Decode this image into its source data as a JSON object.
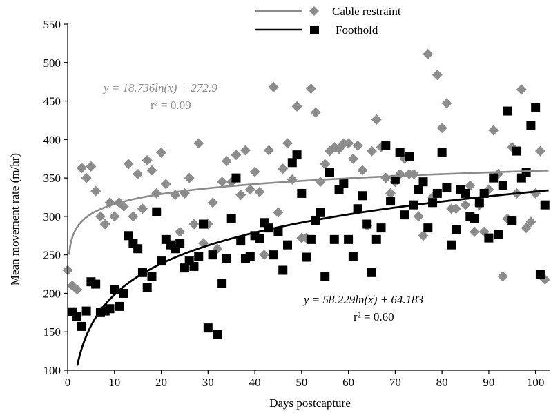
{
  "chart_data": {
    "type": "scatter",
    "title": "",
    "xlabel": "Days postcapture",
    "ylabel": "Mean movement rate (m/hr)",
    "xlim": [
      0,
      103
    ],
    "ylim": [
      100,
      550
    ],
    "x_ticks": [
      0,
      10,
      20,
      30,
      40,
      50,
      60,
      70,
      80,
      90,
      100
    ],
    "y_ticks": [
      100,
      150,
      200,
      250,
      300,
      350,
      400,
      450,
      500,
      550
    ],
    "x_tick_labels": [
      "0",
      "10",
      "20",
      "30",
      "40",
      "50",
      "60",
      "70",
      "80",
      "90",
      "100"
    ],
    "y_tick_labels": [
      "100",
      "150",
      "200",
      "250",
      "300",
      "350",
      "400",
      "450",
      "500",
      "550"
    ],
    "grid": false,
    "legend_position": "top",
    "series": [
      {
        "name": "Cable restraint",
        "color": "#8c8c8c",
        "marker": "diamond",
        "trend": {
          "type": "log",
          "a": 18.736,
          "b": 272.9
        },
        "equation": {
          "formula": "y = 18.736ln(x) + 272.9",
          "r2": "r² = 0.09"
        },
        "points": [
          [
            0,
            230
          ],
          [
            1,
            210
          ],
          [
            2,
            205
          ],
          [
            3,
            363
          ],
          [
            4,
            350
          ],
          [
            5,
            365
          ],
          [
            6,
            333
          ],
          [
            7,
            300
          ],
          [
            8,
            290
          ],
          [
            9,
            318
          ],
          [
            10,
            300
          ],
          [
            11,
            318
          ],
          [
            12,
            313
          ],
          [
            13,
            368
          ],
          [
            14,
            300
          ],
          [
            15,
            355
          ],
          [
            16,
            310
          ],
          [
            17,
            373
          ],
          [
            18,
            360
          ],
          [
            19,
            330
          ],
          [
            20,
            383
          ],
          [
            21,
            342
          ],
          [
            22,
            263
          ],
          [
            23,
            328
          ],
          [
            24,
            280
          ],
          [
            25,
            330
          ],
          [
            26,
            350
          ],
          [
            27,
            290
          ],
          [
            28,
            395
          ],
          [
            29,
            265
          ],
          [
            30,
            290
          ],
          [
            31,
            318
          ],
          [
            32,
            258
          ],
          [
            33,
            345
          ],
          [
            34,
            372
          ],
          [
            35,
            345
          ],
          [
            36,
            380
          ],
          [
            37,
            328
          ],
          [
            38,
            386
          ],
          [
            39,
            335
          ],
          [
            40,
            358
          ],
          [
            41,
            332
          ],
          [
            42,
            250
          ],
          [
            43,
            386
          ],
          [
            44,
            468
          ],
          [
            45,
            305
          ],
          [
            46,
            362
          ],
          [
            47,
            395
          ],
          [
            48,
            348
          ],
          [
            49,
            443
          ],
          [
            50,
            272
          ],
          [
            51,
            272
          ],
          [
            52,
            466
          ],
          [
            53,
            435
          ],
          [
            54,
            345
          ],
          [
            55,
            368
          ],
          [
            56,
            385
          ],
          [
            57,
            390
          ],
          [
            58,
            388
          ],
          [
            59,
            395
          ],
          [
            60,
            395
          ],
          [
            61,
            375
          ],
          [
            62,
            392
          ],
          [
            63,
            360
          ],
          [
            64,
            288
          ],
          [
            65,
            385
          ],
          [
            66,
            426
          ],
          [
            67,
            390
          ],
          [
            68,
            350
          ],
          [
            69,
            330
          ],
          [
            70,
            345
          ],
          [
            71,
            355
          ],
          [
            72,
            375
          ],
          [
            73,
            355
          ],
          [
            74,
            355
          ],
          [
            75,
            300
          ],
          [
            76,
            275
          ],
          [
            77,
            511
          ],
          [
            78,
            325
          ],
          [
            79,
            484
          ],
          [
            80,
            415
          ],
          [
            81,
            447
          ],
          [
            82,
            310
          ],
          [
            83,
            310
          ],
          [
            84,
            335
          ],
          [
            85,
            315
          ],
          [
            86,
            340
          ],
          [
            87,
            280
          ],
          [
            88,
            315
          ],
          [
            89,
            280
          ],
          [
            90,
            335
          ],
          [
            91,
            412
          ],
          [
            92,
            355
          ],
          [
            93,
            222
          ],
          [
            94,
            297
          ],
          [
            95,
            390
          ],
          [
            96,
            330
          ],
          [
            97,
            465
          ],
          [
            98,
            285
          ],
          [
            99,
            293
          ],
          [
            100,
            330
          ],
          [
            101,
            385
          ],
          [
            102,
            218
          ]
        ]
      },
      {
        "name": "Foothold",
        "color": "#000000",
        "marker": "square",
        "trend": {
          "type": "log",
          "a": 58.229,
          "b": 64.183
        },
        "equation": {
          "formula": "y = 58.229ln(x) + 64.183",
          "r2": "r² = 0.60"
        },
        "points": [
          [
            1,
            176
          ],
          [
            2,
            170
          ],
          [
            3,
            157
          ],
          [
            4,
            177
          ],
          [
            5,
            215
          ],
          [
            6,
            212
          ],
          [
            7,
            175
          ],
          [
            8,
            177
          ],
          [
            9,
            180
          ],
          [
            10,
            205
          ],
          [
            11,
            183
          ],
          [
            12,
            200
          ],
          [
            13,
            275
          ],
          [
            14,
            265
          ],
          [
            15,
            258
          ],
          [
            16,
            227
          ],
          [
            17,
            208
          ],
          [
            18,
            222
          ],
          [
            19,
            306
          ],
          [
            20,
            242
          ],
          [
            21,
            270
          ],
          [
            22,
            263
          ],
          [
            23,
            258
          ],
          [
            24,
            265
          ],
          [
            25,
            233
          ],
          [
            26,
            242
          ],
          [
            27,
            235
          ],
          [
            28,
            248
          ],
          [
            29,
            290
          ],
          [
            30,
            155
          ],
          [
            31,
            250
          ],
          [
            32,
            147
          ],
          [
            33,
            213
          ],
          [
            34,
            245
          ],
          [
            35,
            297
          ],
          [
            36,
            350
          ],
          [
            37,
            268
          ],
          [
            38,
            245
          ],
          [
            39,
            248
          ],
          [
            40,
            275
          ],
          [
            41,
            271
          ],
          [
            42,
            292
          ],
          [
            43,
            285
          ],
          [
            44,
            250
          ],
          [
            45,
            280
          ],
          [
            46,
            230
          ],
          [
            47,
            263
          ],
          [
            48,
            370
          ],
          [
            49,
            380
          ],
          [
            50,
            330
          ],
          [
            51,
            247
          ],
          [
            52,
            270
          ],
          [
            53,
            295
          ],
          [
            54,
            305
          ],
          [
            55,
            222
          ],
          [
            56,
            357
          ],
          [
            57,
            270
          ],
          [
            58,
            335
          ],
          [
            59,
            343
          ],
          [
            60,
            270
          ],
          [
            61,
            248
          ],
          [
            62,
            310
          ],
          [
            63,
            327
          ],
          [
            64,
            290
          ],
          [
            65,
            227
          ],
          [
            66,
            270
          ],
          [
            67,
            285
          ],
          [
            68,
            392
          ],
          [
            69,
            320
          ],
          [
            70,
            348
          ],
          [
            71,
            383
          ],
          [
            72,
            302
          ],
          [
            73,
            378
          ],
          [
            74,
            315
          ],
          [
            75,
            335
          ],
          [
            76,
            345
          ],
          [
            77,
            285
          ],
          [
            78,
            318
          ],
          [
            79,
            330
          ],
          [
            80,
            383
          ],
          [
            81,
            338
          ],
          [
            82,
            263
          ],
          [
            83,
            283
          ],
          [
            84,
            335
          ],
          [
            85,
            330
          ],
          [
            86,
            300
          ],
          [
            87,
            297
          ],
          [
            88,
            318
          ],
          [
            89,
            330
          ],
          [
            90,
            272
          ],
          [
            91,
            350
          ],
          [
            92,
            277
          ],
          [
            93,
            340
          ],
          [
            94,
            437
          ],
          [
            95,
            295
          ],
          [
            96,
            385
          ],
          [
            97,
            350
          ],
          [
            98,
            357
          ],
          [
            99,
            418
          ],
          [
            100,
            442
          ],
          [
            101,
            225
          ],
          [
            102,
            315
          ]
        ]
      }
    ]
  }
}
